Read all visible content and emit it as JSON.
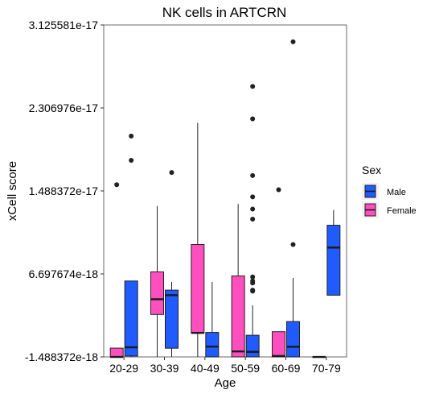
{
  "chart_data": {
    "type": "boxplot",
    "title": "NK cells in ARTCRN",
    "xlabel": "Age",
    "ylabel": "xCell score",
    "categories": [
      "20-29",
      "30-39",
      "40-49",
      "50-59",
      "60-69",
      "70-79"
    ],
    "ylim": [
      -1.488372e-18,
      3.125581e-17
    ],
    "yticks": [
      "-1.488372e-18",
      "6.697674e-18",
      "1.488372e-17",
      "2.306976e-17",
      "3.125581e-17"
    ],
    "grid": false,
    "legend": {
      "title": "Sex",
      "position": "right",
      "entries": [
        "Male",
        "Female"
      ]
    },
    "colors": {
      "Male": "#1f5bff",
      "Female": "#ff4fbf"
    },
    "series": [
      {
        "name": "Female",
        "boxes": [
          {
            "category": "20-29",
            "whislo": -1.49e-18,
            "q1": -1.49e-18,
            "med": -1.49e-18,
            "q3": -6.2e-19,
            "whishi": -6.2e-19,
            "outliers": [
              1.55e-17
            ]
          },
          {
            "category": "30-39",
            "whislo": -1.49e-18,
            "q1": 2.7e-18,
            "med": 4.2e-18,
            "q3": 6.9e-18,
            "whishi": 1.34e-17,
            "outliers": []
          },
          {
            "category": "40-49",
            "whislo": -1.49e-18,
            "q1": 8.8e-19,
            "med": 8.8e-19,
            "q3": 9.6e-18,
            "whishi": 2.16e-17,
            "outliers": []
          },
          {
            "category": "50-59",
            "whislo": -1.49e-18,
            "q1": -1.49e-18,
            "med": -9.5e-19,
            "q3": 6.5e-18,
            "whishi": 1.36e-17,
            "outliers": []
          },
          {
            "category": "60-69",
            "whislo": -1.49e-18,
            "q1": -1.49e-18,
            "med": -1.4e-18,
            "q3": 1e-18,
            "whishi": 1e-18,
            "outliers": [
              1.5e-17
            ]
          },
          {
            "category": "70-79",
            "whislo": -1.49e-18,
            "q1": -1.49e-18,
            "med": -1.49e-18,
            "q3": -1.49e-18,
            "whishi": -1.49e-18,
            "outliers": []
          }
        ]
      },
      {
        "name": "Male",
        "boxes": [
          {
            "category": "20-29",
            "whislo": -1.49e-18,
            "q1": -1.4e-18,
            "med": -5.4e-19,
            "q3": 6e-18,
            "whishi": 6e-18,
            "outliers": [
              1.79e-17,
              2.03e-17
            ]
          },
          {
            "category": "30-39",
            "whislo": -1.49e-18,
            "q1": -6.3e-19,
            "med": 4.6e-18,
            "q3": 5.1e-18,
            "whishi": 5.9e-18,
            "outliers": [
              1.67e-17
            ]
          },
          {
            "category": "40-49",
            "whislo": -1.49e-18,
            "q1": -1.49e-18,
            "med": -4.7e-19,
            "q3": 9.3e-19,
            "whishi": 5.9e-18,
            "outliers": []
          },
          {
            "category": "50-59",
            "whislo": -1.49e-18,
            "q1": -1.49e-18,
            "med": -9.9e-19,
            "q3": 6.5e-19,
            "whishi": 3.6e-18,
            "outliers": [
              5e-18,
              5.1e-18,
              5.8e-18,
              6e-18,
              6.4e-18,
              1.21e-17,
              1.31e-17,
              1.43e-17,
              1.64e-17,
              2.2e-17,
              2.52e-17
            ]
          },
          {
            "category": "60-69",
            "whislo": -1.49e-18,
            "q1": -1.49e-18,
            "med": -4.9e-19,
            "q3": 2e-18,
            "whishi": 6.3e-18,
            "outliers": [
              9.6e-18,
              2.96e-17
            ]
          },
          {
            "category": "70-79",
            "whislo": 4.6e-18,
            "q1": 4.6e-18,
            "med": 9.3e-18,
            "q3": 1.15e-17,
            "whishi": 1.3e-17,
            "outliers": []
          }
        ]
      }
    ]
  }
}
